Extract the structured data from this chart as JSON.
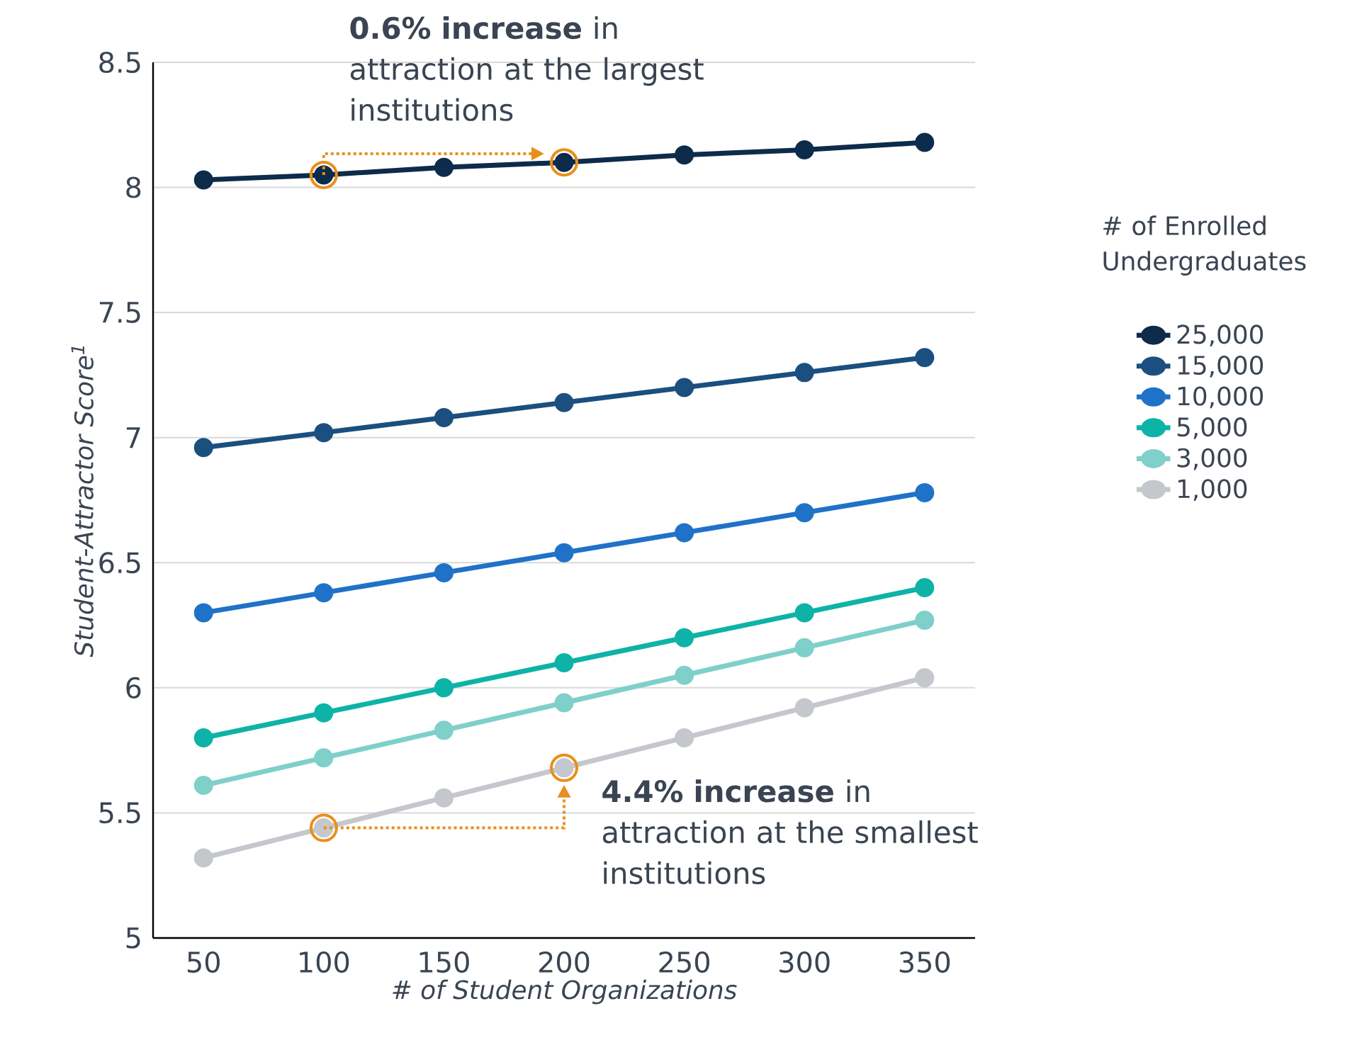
{
  "chart_data": {
    "type": "line",
    "xlabel": "# of Student Organizations",
    "ylabel": "Student-Attractor Score$^{1}$",
    "legend_title": "# of Enrolled Undergraduates",
    "x": [
      50,
      100,
      150,
      200,
      250,
      300,
      350
    ],
    "xlim": [
      29,
      371
    ],
    "xticks": [
      50,
      100,
      150,
      200,
      250,
      300,
      350
    ],
    "ylim": [
      5,
      8.5
    ],
    "yticks": [
      5,
      5.5,
      6,
      6.5,
      7,
      7.5,
      8,
      8.5
    ],
    "grid": "y",
    "legend": "right",
    "marker": "circle",
    "line_style": "solid",
    "series": [
      {
        "name": "25,000",
        "color": "#0d2b4a",
        "values": [
          8.03,
          8.05,
          8.08,
          8.1,
          8.13,
          8.15,
          8.18
        ]
      },
      {
        "name": "15,000",
        "color": "#1b4f7f",
        "values": [
          6.96,
          7.02,
          7.08,
          7.14,
          7.2,
          7.26,
          7.32
        ]
      },
      {
        "name": "10,000",
        "color": "#1f72c8",
        "values": [
          6.3,
          6.38,
          6.46,
          6.54,
          6.62,
          6.7,
          6.78
        ]
      },
      {
        "name": "5,000",
        "color": "#0db3a6",
        "values": [
          5.8,
          5.9,
          6.0,
          6.1,
          6.2,
          6.3,
          6.4
        ]
      },
      {
        "name": "3,000",
        "color": "#7fcfca",
        "values": [
          5.61,
          5.72,
          5.83,
          5.94,
          6.05,
          6.16,
          6.27
        ]
      },
      {
        "name": "1,000",
        "color": "#c4c7cc",
        "values": [
          5.32,
          5.44,
          5.56,
          5.68,
          5.8,
          5.92,
          6.04
        ]
      }
    ],
    "annotations": [
      {
        "text": "**0.6% increase** in attraction at the largest institutions",
        "x": 200,
        "y": 8.1
      },
      {
        "text": "**4.4% increase** in attraction at the smallest institutions",
        "x": 200,
        "y": 5.68
      }
    ]
  }
}
